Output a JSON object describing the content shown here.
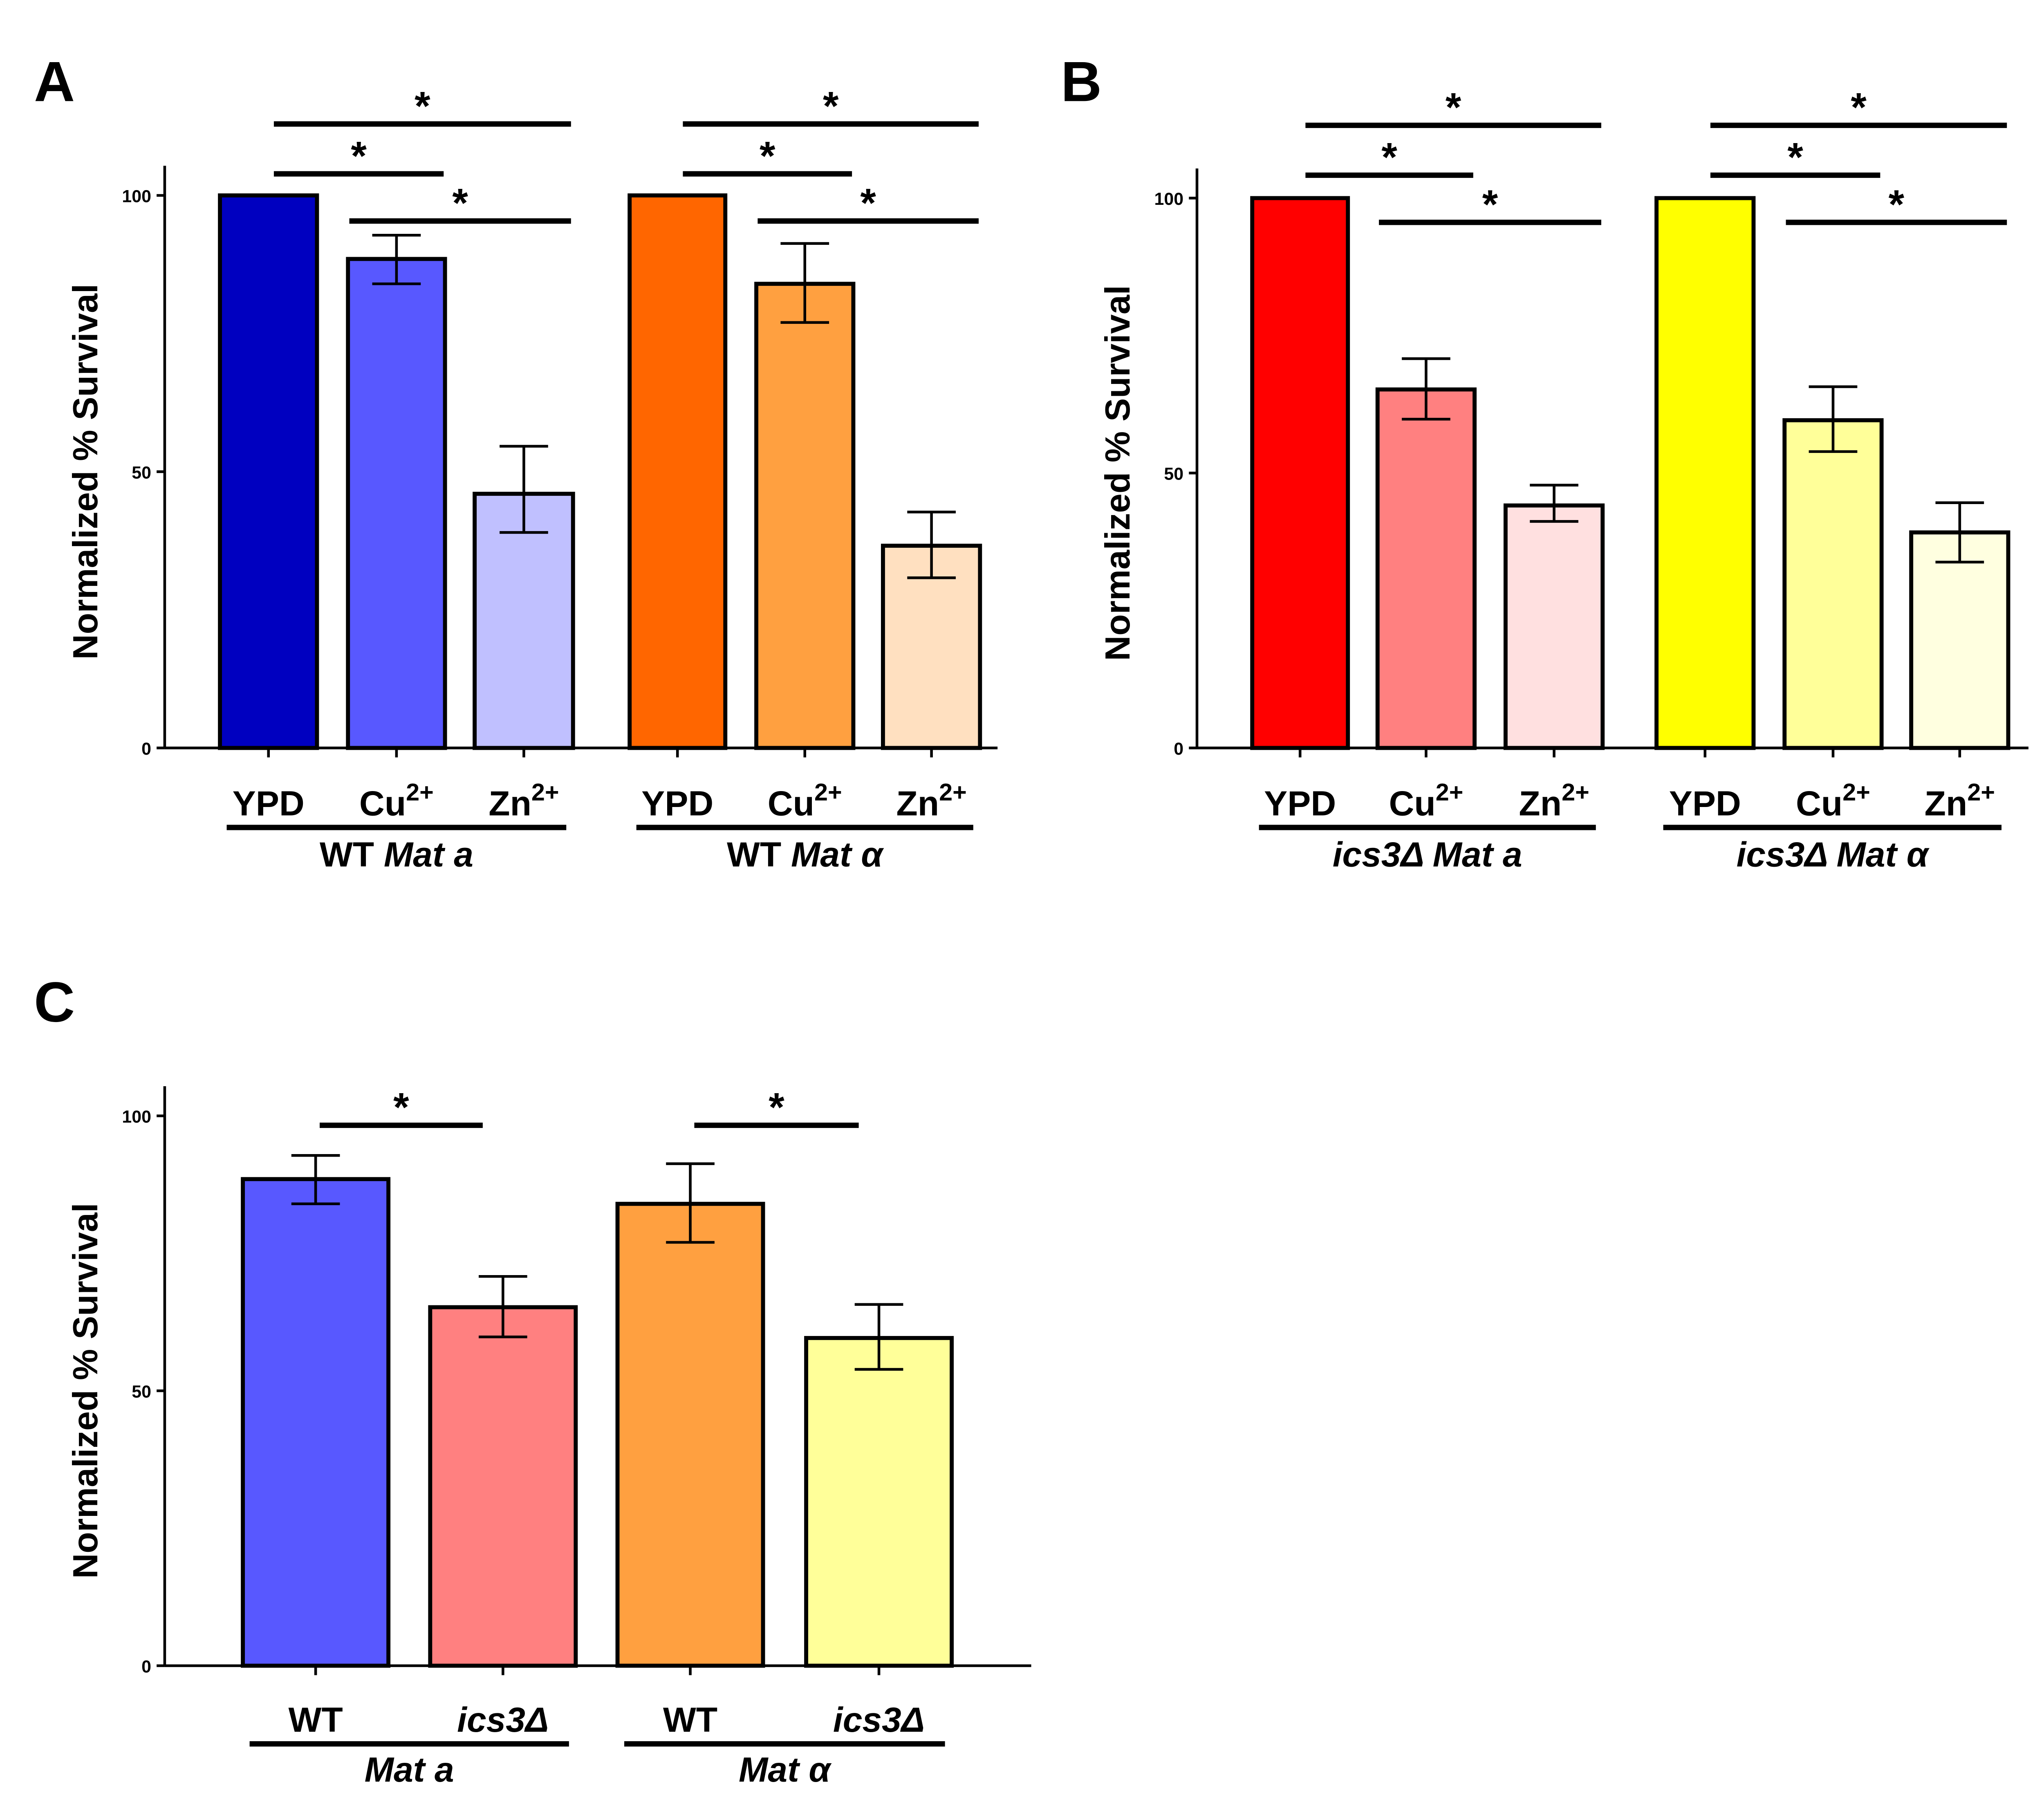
{
  "panel_labels": [
    "A",
    "B",
    "C"
  ],
  "chart_data": [
    {
      "type": "bar",
      "panel": "A",
      "ylabel": "Normalized % Survival",
      "ylim": [
        0,
        100
      ],
      "yticks": [
        0,
        50,
        100
      ],
      "grid": false,
      "groups": [
        {
          "label_normal": "WT ",
          "label_italic": "Mat a",
          "bars": [
            {
              "category": "YPD",
              "sup": "",
              "value": 100,
              "err_low": 100,
              "err_high": 100,
              "color": "#0000C0"
            },
            {
              "category": "Cu",
              "sup": "2+",
              "value": 88.5,
              "err_low": 84,
              "err_high": 92.8,
              "color": "#5858FF"
            },
            {
              "category": "Zn",
              "sup": "2+",
              "value": 46,
              "err_low": 39,
              "err_high": 54.6,
              "color": "#C0C0FF"
            }
          ],
          "significance": [
            {
              "from": 0,
              "to": 2,
              "label": "*"
            },
            {
              "from": 0,
              "to": 1,
              "label": "*"
            },
            {
              "from": 1,
              "to": 2,
              "label": "*"
            }
          ]
        },
        {
          "label_normal": "WT ",
          "label_italic": "Mat α",
          "bars": [
            {
              "category": "YPD",
              "sup": "",
              "value": 100,
              "err_low": 100,
              "err_high": 100,
              "color": "#FF6600"
            },
            {
              "category": "Cu",
              "sup": "2+",
              "value": 84,
              "err_low": 77,
              "err_high": 91.3,
              "color": "#FFA040"
            },
            {
              "category": "Zn",
              "sup": "2+",
              "value": 36.6,
              "err_low": 30.8,
              "err_high": 42.7,
              "color": "#FFE0C0"
            }
          ],
          "significance": [
            {
              "from": 0,
              "to": 2,
              "label": "*"
            },
            {
              "from": 0,
              "to": 1,
              "label": "*"
            },
            {
              "from": 1,
              "to": 2,
              "label": "*"
            }
          ]
        }
      ]
    },
    {
      "type": "bar",
      "panel": "B",
      "ylabel": "Normalized % Survival",
      "ylim": [
        0,
        100
      ],
      "yticks": [
        0,
        50,
        100
      ],
      "grid": false,
      "groups": [
        {
          "label_normal": "",
          "label_italic": "ics3Δ Mat a",
          "bars": [
            {
              "category": "YPD",
              "sup": "",
              "value": 100,
              "err_low": 100,
              "err_high": 100,
              "color": "#FF0000"
            },
            {
              "category": "Cu",
              "sup": "2+",
              "value": 65.2,
              "err_low": 59.8,
              "err_high": 70.8,
              "color": "#FF8080"
            },
            {
              "category": "Zn",
              "sup": "2+",
              "value": 44.1,
              "err_low": 41.2,
              "err_high": 47.8,
              "color": "#FFE0E0"
            }
          ],
          "significance": [
            {
              "from": 0,
              "to": 2,
              "label": "*"
            },
            {
              "from": 0,
              "to": 1,
              "label": "*"
            },
            {
              "from": 1,
              "to": 2,
              "label": "*"
            }
          ]
        },
        {
          "label_normal": "",
          "label_italic": "ics3Δ Mat α",
          "bars": [
            {
              "category": "YPD",
              "sup": "",
              "value": 100,
              "err_low": 100,
              "err_high": 100,
              "color": "#FFFF00"
            },
            {
              "category": "Cu",
              "sup": "2+",
              "value": 59.6,
              "err_low": 53.9,
              "err_high": 65.7,
              "color": "#FFFF99"
            },
            {
              "category": "Zn",
              "sup": "2+",
              "value": 39.2,
              "err_low": 33.8,
              "err_high": 44.6,
              "color": "#FFFFE0"
            }
          ],
          "significance": [
            {
              "from": 0,
              "to": 2,
              "label": "*"
            },
            {
              "from": 0,
              "to": 1,
              "label": "*"
            },
            {
              "from": 1,
              "to": 2,
              "label": "*"
            }
          ]
        }
      ]
    },
    {
      "type": "bar",
      "panel": "C",
      "ylabel": "Normalized % Survival",
      "ylim": [
        0,
        100
      ],
      "yticks": [
        0,
        50,
        100
      ],
      "grid": false,
      "groups": [
        {
          "label_normal": "",
          "label_italic": "Mat a",
          "bars": [
            {
              "category": "WT",
              "sup": "",
              "italic": false,
              "value": 88.5,
              "err_low": 84,
              "err_high": 92.8,
              "color": "#5858FF"
            },
            {
              "category": "ics3Δ",
              "sup": "",
              "italic": true,
              "value": 65.2,
              "err_low": 59.8,
              "err_high": 70.8,
              "color": "#FF8080"
            }
          ],
          "significance": [
            {
              "from": 0,
              "to": 1,
              "label": "*"
            }
          ]
        },
        {
          "label_normal": "",
          "label_italic": "Mat α",
          "bars": [
            {
              "category": "WT",
              "sup": "",
              "italic": false,
              "value": 84,
              "err_low": 77,
              "err_high": 91.3,
              "color": "#FFA040"
            },
            {
              "category": "ics3Δ",
              "sup": "",
              "italic": true,
              "value": 59.6,
              "err_low": 53.9,
              "err_high": 65.7,
              "color": "#FFFF99"
            }
          ],
          "significance": [
            {
              "from": 0,
              "to": 1,
              "label": "*"
            }
          ]
        }
      ]
    }
  ]
}
